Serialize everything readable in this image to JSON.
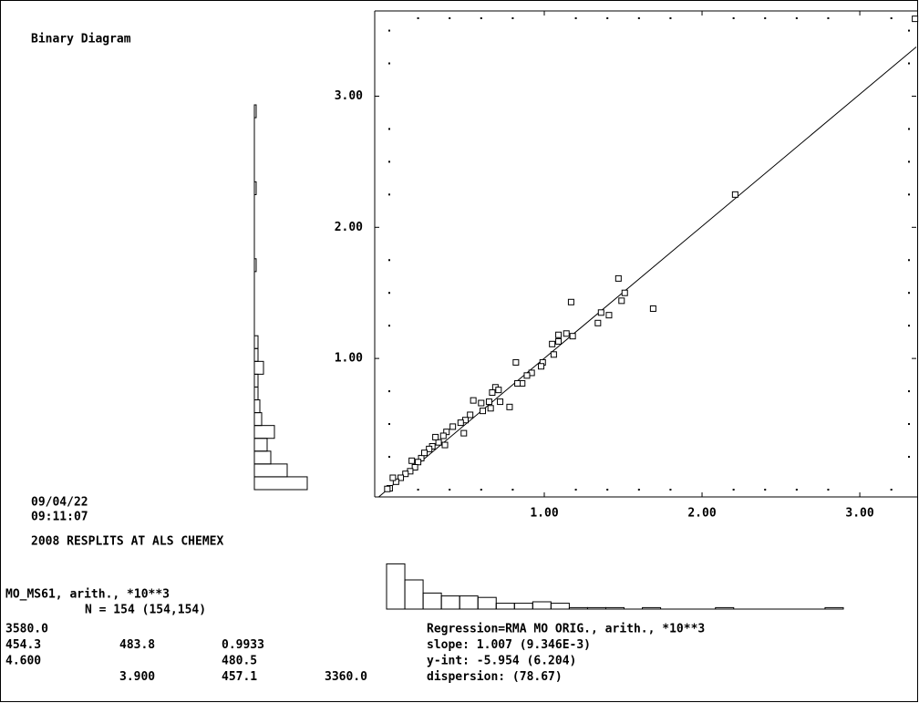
{
  "chart_data": {
    "type": "scatter",
    "title": "Binary Diagram",
    "date": "09/04/22",
    "time": "09:11:07",
    "subtitle": "2008 RESPLITS AT ALS CHEMEX",
    "y_variable": "MO_MS61, arith., *10**3",
    "n_line": "N = 154 (154,154)",
    "stats_rows": [
      [
        "3580.0",
        "",
        "",
        ""
      ],
      [
        "454.3",
        "483.8",
        "0.9933",
        ""
      ],
      [
        "4.600",
        "",
        "480.5",
        ""
      ],
      [
        "",
        "3.900",
        "457.1",
        "3360.0"
      ]
    ],
    "regression_text": [
      "Regression=RMA   MO ORIG., arith., *10**3",
      "slope: 1.007 (9.346E-3)",
      "y-int: -5.954 (6.204)",
      "dispersion:     (78.67)"
    ],
    "regression_line": {
      "slope": 1.007,
      "intercept": -0.005954
    },
    "xlim": [
      -0.075,
      3.358
    ],
    "ylim": [
      -0.056,
      3.65
    ],
    "xticks": [
      {
        "value": 1,
        "label": "1.00"
      },
      {
        "value": 2,
        "label": "2.00"
      },
      {
        "value": 3,
        "label": "3.00"
      }
    ],
    "yticks": [
      {
        "value": 1,
        "label": "1.00"
      },
      {
        "value": 2,
        "label": "2.00"
      },
      {
        "value": 3,
        "label": "3.00"
      }
    ],
    "xminorticks": [
      0.2,
      0.4,
      0.6,
      0.8,
      1.2,
      1.4,
      1.6,
      1.8,
      2.2,
      2.4,
      2.6,
      2.8,
      3.2
    ],
    "yminorticks": [
      0.25,
      0.5,
      0.75,
      1.25,
      1.5,
      1.75,
      2.25,
      2.5,
      2.75,
      3.25,
      3.5
    ],
    "color": "#000000",
    "x": [
      3.35,
      2.21,
      1.69,
      1.47,
      1.51,
      1.49,
      1.36,
      1.41,
      1.34,
      1.17,
      1.18,
      1.14,
      1.09,
      1.09,
      1.05,
      1.06,
      0.99,
      0.98,
      0.92,
      0.89,
      0.86,
      0.83,
      0.82,
      0.78,
      0.72,
      0.69,
      0.67,
      0.71,
      0.66,
      0.65,
      0.6,
      0.55,
      0.61,
      0.53,
      0.5,
      0.47,
      0.49,
      0.42,
      0.38,
      0.36,
      0.33,
      0.29,
      0.27,
      0.22,
      0.2,
      0.18,
      0.15,
      0.12,
      0.09,
      0.06,
      0.04,
      0.02,
      0.005,
      0.37,
      0.31,
      0.24,
      0.16
    ],
    "y": [
      3.59,
      2.25,
      1.38,
      1.61,
      1.5,
      1.44,
      1.35,
      1.33,
      1.27,
      1.43,
      1.17,
      1.19,
      1.18,
      1.13,
      1.11,
      1.03,
      0.97,
      0.94,
      0.89,
      0.87,
      0.81,
      0.81,
      0.97,
      0.63,
      0.67,
      0.78,
      0.74,
      0.76,
      0.62,
      0.67,
      0.66,
      0.68,
      0.6,
      0.57,
      0.53,
      0.51,
      0.43,
      0.48,
      0.44,
      0.41,
      0.36,
      0.33,
      0.31,
      0.24,
      0.21,
      0.17,
      0.14,
      0.12,
      0.09,
      0.06,
      0.09,
      0.01,
      0.005,
      0.34,
      0.4,
      0.28,
      0.22
    ],
    "y_histogram": {
      "bins": [
        0,
        0.12,
        0.24,
        0.36,
        0.48,
        0.6,
        0.72,
        0.84,
        0.96,
        1.08,
        1.2,
        1.32,
        1.44,
        1.56,
        1.68,
        1.8,
        1.92,
        2.04,
        2.16,
        2.28,
        2.4,
        2.52,
        2.64,
        2.76,
        2.88,
        3.0,
        3.12,
        3.24,
        3.36,
        3.48,
        3.6
      ],
      "counts": [
        29,
        18,
        9,
        7,
        11,
        4,
        3,
        2,
        2,
        5,
        2,
        2,
        0,
        0,
        0,
        0,
        0,
        1,
        0,
        0,
        0,
        0,
        0,
        1,
        0,
        0,
        0,
        0,
        0,
        1
      ]
    },
    "x_histogram": {
      "bins": [
        0,
        0.135,
        0.27,
        0.405,
        0.54,
        0.675,
        0.81,
        0.945,
        1.08,
        1.215,
        1.35,
        1.485,
        1.62,
        1.755,
        1.89,
        2.025,
        2.16,
        2.295,
        2.43,
        2.565,
        2.7,
        2.835,
        2.97,
        3.105,
        3.24,
        3.375
      ],
      "counts": [
        31,
        20,
        11,
        9,
        9,
        8,
        4,
        4,
        5,
        4,
        1,
        1,
        1,
        0,
        1,
        0,
        0,
        0,
        1,
        0,
        0,
        0,
        0,
        0,
        1
      ]
    }
  }
}
